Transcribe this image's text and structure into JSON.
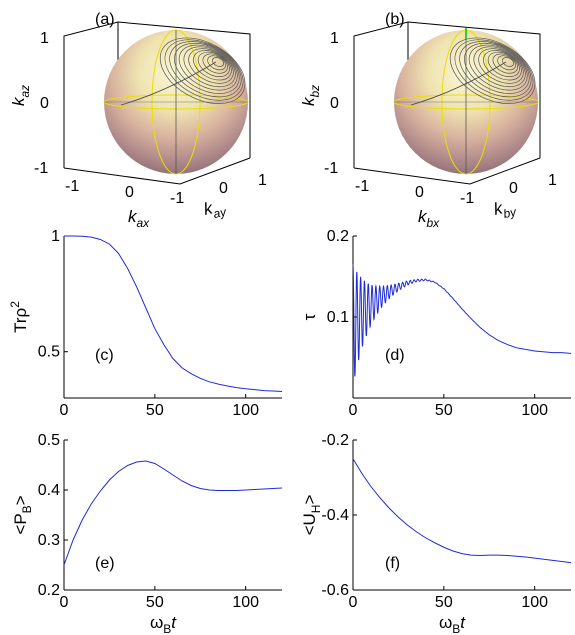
{
  "spheres": [
    {
      "panel_label": "(a)",
      "z_label": "k",
      "z_sub": "az",
      "x_label": "k",
      "x_sub": "ax",
      "y_label": "k",
      "y_sub": "ay",
      "z_ticks": [
        "1",
        "0",
        "-1"
      ],
      "x_ticks": [
        "-1",
        "0",
        "-1"
      ],
      "y_ticks": [
        "0",
        "1"
      ]
    },
    {
      "panel_label": "(b)",
      "z_label": "k",
      "z_sub": "bz",
      "x_label": "k",
      "x_sub": "bx",
      "y_label": "k",
      "y_sub": "by",
      "z_ticks": [
        "1",
        "0",
        "-1"
      ],
      "x_ticks": [
        "-1",
        "0",
        "-1"
      ],
      "y_ticks": [
        "0",
        "1"
      ]
    }
  ],
  "chart_data": [
    {
      "type": "line",
      "panel_label": "(c)",
      "ylabel": "Trρ",
      "ylabel_sup": "2",
      "xlim": [
        0,
        120
      ],
      "ylim": [
        0.3,
        1.0
      ],
      "xticks": [
        0,
        50,
        100
      ],
      "yticks": [
        0.5,
        1
      ],
      "ytick_labels": [
        "0.5",
        "1"
      ],
      "x": [
        0,
        5,
        10,
        15,
        20,
        25,
        30,
        35,
        40,
        45,
        50,
        55,
        60,
        65,
        70,
        75,
        80,
        85,
        90,
        95,
        100,
        105,
        110,
        115,
        120
      ],
      "y": [
        1.0,
        1.0,
        0.999,
        0.995,
        0.985,
        0.965,
        0.925,
        0.86,
        0.78,
        0.69,
        0.6,
        0.53,
        0.47,
        0.43,
        0.405,
        0.385,
        0.37,
        0.36,
        0.352,
        0.345,
        0.34,
        0.336,
        0.332,
        0.33,
        0.328
      ]
    },
    {
      "type": "line",
      "panel_label": "(d)",
      "ylabel": "τ",
      "xlim": [
        0,
        120
      ],
      "ylim": [
        0.0,
        0.2
      ],
      "xticks": [
        0,
        50,
        100
      ],
      "yticks": [
        0.1,
        0.2
      ],
      "ytick_labels": [
        "0.1",
        "0.2"
      ],
      "envelope_x": [
        0,
        5,
        10,
        15,
        20,
        25,
        30,
        35,
        40,
        45,
        50,
        55,
        60,
        65,
        70,
        75,
        80,
        85,
        90,
        95,
        100,
        105,
        110,
        115,
        120
      ],
      "envelope_y": [
        0.09,
        0.105,
        0.115,
        0.124,
        0.131,
        0.137,
        0.142,
        0.145,
        0.146,
        0.143,
        0.135,
        0.123,
        0.11,
        0.098,
        0.087,
        0.078,
        0.071,
        0.066,
        0.062,
        0.06,
        0.058,
        0.057,
        0.056,
        0.056,
        0.055
      ],
      "oscillation_peak": 0.16,
      "oscillation_trough": 0.01
    },
    {
      "type": "line",
      "panel_label": "(e)",
      "ylabel": "<P",
      "ylabel_sub": "B",
      "ylabel_end": ">",
      "xlabel": "ω",
      "xlabel_sub": "B",
      "xlabel_end": "t",
      "xlim": [
        0,
        120
      ],
      "ylim": [
        0.2,
        0.5
      ],
      "xticks": [
        0,
        50,
        100
      ],
      "yticks": [
        0.2,
        0.3,
        0.4,
        0.5
      ],
      "ytick_labels": [
        "0.2",
        "0.3",
        "0.4",
        "0.5"
      ],
      "x": [
        0,
        5,
        10,
        15,
        20,
        25,
        30,
        35,
        40,
        45,
        50,
        55,
        60,
        65,
        70,
        75,
        80,
        85,
        90,
        95,
        100,
        105,
        110,
        115,
        120
      ],
      "y": [
        0.25,
        0.3,
        0.34,
        0.372,
        0.398,
        0.42,
        0.437,
        0.449,
        0.456,
        0.458,
        0.453,
        0.442,
        0.43,
        0.418,
        0.409,
        0.403,
        0.4,
        0.399,
        0.399,
        0.399,
        0.4,
        0.401,
        0.402,
        0.403,
        0.404
      ]
    },
    {
      "type": "line",
      "panel_label": "(f)",
      "ylabel": "<U",
      "ylabel_sub": "H",
      "ylabel_end": ">",
      "xlabel": "ω",
      "xlabel_sub": "B",
      "xlabel_end": "t",
      "xlim": [
        0,
        120
      ],
      "ylim": [
        -0.6,
        -0.2
      ],
      "xticks": [
        0,
        50,
        100
      ],
      "yticks": [
        -0.6,
        -0.4,
        -0.2
      ],
      "ytick_labels": [
        "-0.6",
        "-0.4",
        "-0.2"
      ],
      "x": [
        0,
        5,
        10,
        15,
        20,
        25,
        30,
        35,
        40,
        45,
        50,
        55,
        60,
        65,
        70,
        75,
        80,
        85,
        90,
        95,
        100,
        105,
        110,
        115,
        120
      ],
      "y": [
        -0.25,
        -0.29,
        -0.325,
        -0.355,
        -0.382,
        -0.406,
        -0.427,
        -0.445,
        -0.461,
        -0.474,
        -0.486,
        -0.496,
        -0.503,
        -0.507,
        -0.508,
        -0.507,
        -0.507,
        -0.508,
        -0.51,
        -0.512,
        -0.515,
        -0.518,
        -0.521,
        -0.524,
        -0.527
      ]
    }
  ]
}
